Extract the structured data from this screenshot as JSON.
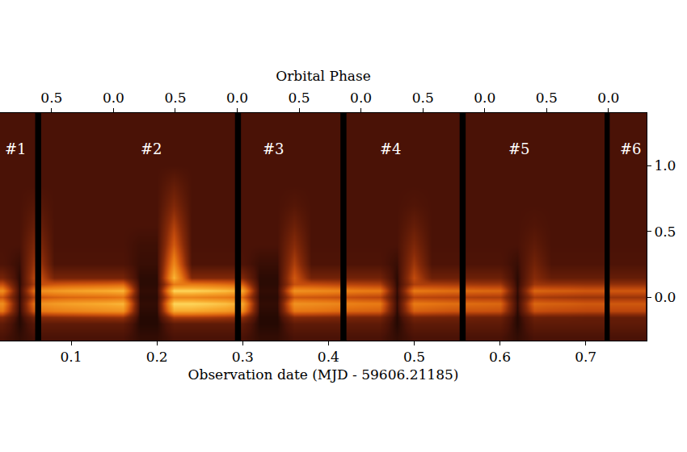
{
  "chart_data": {
    "type": "heatmap",
    "xlabel": "Observation date (MJD - 59606.21185)",
    "x2label": "Orbital Phase",
    "xlim": [
      0.017,
      0.771
    ],
    "xticks": [
      0.1,
      0.2,
      0.3,
      0.4,
      0.5,
      0.6,
      0.7
    ],
    "x2lim": [
      -0.917,
      4.308
    ],
    "x2ticks": [
      {
        "value": -0.5,
        "label": "0.5"
      },
      {
        "value": 0,
        "label": "0.0"
      },
      {
        "value": 0.5,
        "label": "0.5"
      },
      {
        "value": 1,
        "label": "0.0"
      },
      {
        "value": 1.5,
        "label": "0.5"
      },
      {
        "value": 2,
        "label": "0.0"
      },
      {
        "value": 2.5,
        "label": "0.5"
      },
      {
        "value": 3,
        "label": "0.0"
      },
      {
        "value": 3.5,
        "label": "0.5"
      },
      {
        "value": 4,
        "label": "0.0"
      }
    ],
    "ylim": [
      -0.33,
      1.4
    ],
    "yticks": [
      {
        "value": 0,
        "label": "0.0"
      },
      0.5,
      {
        "value": 1,
        "label": "1.0"
      }
    ],
    "grid": false,
    "zlim": [
      0,
      1
    ],
    "x": [
      0.02,
      0.04,
      0.06,
      0.08,
      0.1,
      0.12,
      0.14,
      0.16,
      0.18,
      0.2,
      0.22,
      0.24,
      0.26,
      0.28,
      0.3,
      0.32,
      0.34,
      0.36,
      0.38,
      0.4,
      0.42,
      0.44,
      0.46,
      0.48,
      0.5,
      0.52,
      0.54,
      0.56,
      0.58,
      0.6,
      0.62,
      0.64,
      0.66,
      0.68,
      0.7,
      0.72,
      0.74,
      0.76
    ],
    "y": [
      -0.3,
      -0.2,
      -0.15,
      -0.1,
      -0.05,
      0.0,
      0.05,
      0.1,
      0.15,
      0.25,
      0.4,
      0.55,
      0.7,
      0.85,
      1.0,
      1.15,
      1.3,
      1.4
    ],
    "cells": [
      [
        0.12,
        0.08,
        0.12,
        0.12,
        0.12,
        0.12,
        0.12,
        0.12,
        0.08,
        0.08,
        0.12,
        0.12,
        0.12,
        0.12,
        0.12,
        0.08,
        0.08,
        0.12,
        0.12,
        0.12,
        0.12,
        0.12,
        0.12,
        0.08,
        0.12,
        0.12,
        0.12,
        0.12,
        0.12,
        0.12,
        0.08,
        0.12,
        0.12,
        0.12,
        0.12,
        0.12,
        0.12,
        0.12
      ],
      [
        0.18,
        0.06,
        0.18,
        0.18,
        0.18,
        0.18,
        0.18,
        0.18,
        0.06,
        0.06,
        0.18,
        0.18,
        0.18,
        0.18,
        0.18,
        0.06,
        0.06,
        0.18,
        0.18,
        0.18,
        0.18,
        0.18,
        0.18,
        0.06,
        0.18,
        0.18,
        0.18,
        0.18,
        0.18,
        0.18,
        0.06,
        0.18,
        0.18,
        0.18,
        0.18,
        0.18,
        0.18,
        0.18
      ],
      [
        0.28,
        0.06,
        0.28,
        0.3,
        0.31,
        0.32,
        0.33,
        0.34,
        0.06,
        0.06,
        0.38,
        0.38,
        0.37,
        0.35,
        0.32,
        0.06,
        0.06,
        0.29,
        0.28,
        0.27,
        0.26,
        0.25,
        0.25,
        0.06,
        0.25,
        0.24,
        0.23,
        0.23,
        0.22,
        0.22,
        0.06,
        0.22,
        0.21,
        0.21,
        0.2,
        0.2,
        0.2,
        0.2
      ],
      [
        0.6,
        0.07,
        0.6,
        0.64,
        0.66,
        0.68,
        0.7,
        0.72,
        0.07,
        0.07,
        0.81,
        0.81,
        0.78,
        0.75,
        0.68,
        0.07,
        0.07,
        0.61,
        0.6,
        0.58,
        0.55,
        0.54,
        0.53,
        0.07,
        0.53,
        0.51,
        0.49,
        0.48,
        0.48,
        0.47,
        0.07,
        0.47,
        0.45,
        0.44,
        0.43,
        0.43,
        0.43,
        0.43
      ],
      [
        0.7,
        0.08,
        0.7,
        0.75,
        0.78,
        0.8,
        0.82,
        0.85,
        0.08,
        0.08,
        0.95,
        0.95,
        0.92,
        0.88,
        0.8,
        0.08,
        0.08,
        0.72,
        0.7,
        0.68,
        0.65,
        0.63,
        0.62,
        0.08,
        0.62,
        0.6,
        0.58,
        0.57,
        0.56,
        0.55,
        0.08,
        0.55,
        0.53,
        0.52,
        0.5,
        0.5,
        0.5,
        0.5
      ],
      [
        0.49,
        0.07,
        0.49,
        0.53,
        0.55,
        0.56,
        0.57,
        0.6,
        0.07,
        0.07,
        0.67,
        0.67,
        0.64,
        0.62,
        0.56,
        0.07,
        0.07,
        0.5,
        0.49,
        0.48,
        0.46,
        0.44,
        0.43,
        0.07,
        0.43,
        0.42,
        0.41,
        0.4,
        0.39,
        0.39,
        0.07,
        0.39,
        0.37,
        0.36,
        0.35,
        0.35,
        0.35,
        0.35
      ],
      [
        0.7,
        0.08,
        0.7,
        0.75,
        0.78,
        0.8,
        0.82,
        0.85,
        0.08,
        0.08,
        0.95,
        0.95,
        0.92,
        0.88,
        0.8,
        0.08,
        0.08,
        0.72,
        0.7,
        0.68,
        0.65,
        0.63,
        0.62,
        0.08,
        0.62,
        0.6,
        0.58,
        0.57,
        0.56,
        0.55,
        0.08,
        0.55,
        0.53,
        0.52,
        0.5,
        0.5,
        0.5,
        0.5
      ],
      [
        0.46,
        0.07,
        0.46,
        0.49,
        0.51,
        0.52,
        0.53,
        0.55,
        0.07,
        0.07,
        0.62,
        0.62,
        0.6,
        0.57,
        0.52,
        0.07,
        0.07,
        0.47,
        0.46,
        0.44,
        0.42,
        0.41,
        0.4,
        0.07,
        0.4,
        0.39,
        0.38,
        0.37,
        0.36,
        0.36,
        0.07,
        0.36,
        0.34,
        0.34,
        0.33,
        0.33,
        0.33,
        0.33
      ],
      [
        0.25,
        0.07,
        0.5,
        0.25,
        0.25,
        0.25,
        0.25,
        0.25,
        0.07,
        0.07,
        0.85,
        0.28,
        0.28,
        0.28,
        0.28,
        0.07,
        0.07,
        0.5,
        0.24,
        0.24,
        0.24,
        0.24,
        0.24,
        0.07,
        0.45,
        0.22,
        0.22,
        0.22,
        0.22,
        0.22,
        0.07,
        0.3,
        0.2,
        0.2,
        0.2,
        0.2,
        0.2,
        0.2
      ],
      [
        0.13,
        0.09,
        0.4,
        0.13,
        0.13,
        0.13,
        0.13,
        0.13,
        0.09,
        0.09,
        0.68,
        0.13,
        0.13,
        0.13,
        0.13,
        0.09,
        0.09,
        0.4,
        0.13,
        0.13,
        0.13,
        0.13,
        0.13,
        0.09,
        0.36,
        0.13,
        0.13,
        0.13,
        0.13,
        0.13,
        0.09,
        0.24,
        0.13,
        0.13,
        0.13,
        0.13,
        0.13,
        0.13
      ],
      [
        0.12,
        0.12,
        0.3,
        0.12,
        0.12,
        0.12,
        0.12,
        0.12,
        0.1,
        0.1,
        0.51,
        0.12,
        0.12,
        0.12,
        0.12,
        0.12,
        0.12,
        0.3,
        0.12,
        0.12,
        0.12,
        0.12,
        0.12,
        0.12,
        0.27,
        0.12,
        0.12,
        0.12,
        0.12,
        0.12,
        0.12,
        0.18,
        0.12,
        0.12,
        0.12,
        0.12,
        0.12,
        0.12
      ],
      [
        0.12,
        0.12,
        0.22,
        0.12,
        0.12,
        0.12,
        0.12,
        0.12,
        0.12,
        0.12,
        0.4,
        0.12,
        0.12,
        0.12,
        0.12,
        0.12,
        0.12,
        0.22,
        0.12,
        0.12,
        0.12,
        0.12,
        0.12,
        0.12,
        0.2,
        0.12,
        0.12,
        0.12,
        0.12,
        0.12,
        0.12,
        0.14,
        0.12,
        0.12,
        0.12,
        0.12,
        0.12,
        0.12
      ],
      [
        0.12,
        0.12,
        0.16,
        0.12,
        0.12,
        0.12,
        0.12,
        0.12,
        0.12,
        0.12,
        0.28,
        0.12,
        0.12,
        0.12,
        0.12,
        0.12,
        0.12,
        0.15,
        0.12,
        0.12,
        0.12,
        0.12,
        0.12,
        0.12,
        0.14,
        0.12,
        0.12,
        0.12,
        0.12,
        0.12,
        0.12,
        0.12,
        0.12,
        0.12,
        0.12,
        0.12,
        0.12,
        0.12
      ],
      [
        0.12,
        0.12,
        0.12,
        0.12,
        0.12,
        0.12,
        0.12,
        0.12,
        0.12,
        0.12,
        0.2,
        0.12,
        0.12,
        0.12,
        0.12,
        0.12,
        0.12,
        0.12,
        0.12,
        0.12,
        0.12,
        0.12,
        0.12,
        0.12,
        0.12,
        0.12,
        0.12,
        0.12,
        0.12,
        0.12,
        0.12,
        0.12,
        0.12,
        0.12,
        0.12,
        0.12,
        0.12,
        0.12
      ],
      [
        0.12,
        0.12,
        0.12,
        0.12,
        0.12,
        0.12,
        0.12,
        0.12,
        0.12,
        0.12,
        0.12,
        0.12,
        0.12,
        0.12,
        0.12,
        0.12,
        0.12,
        0.12,
        0.12,
        0.12,
        0.12,
        0.12,
        0.12,
        0.12,
        0.12,
        0.12,
        0.12,
        0.12,
        0.12,
        0.12,
        0.12,
        0.12,
        0.12,
        0.12,
        0.12,
        0.12,
        0.12,
        0.12
      ],
      [
        0.12,
        0.12,
        0.12,
        0.12,
        0.12,
        0.12,
        0.12,
        0.12,
        0.12,
        0.12,
        0.12,
        0.12,
        0.12,
        0.12,
        0.12,
        0.12,
        0.12,
        0.12,
        0.12,
        0.12,
        0.12,
        0.12,
        0.12,
        0.12,
        0.12,
        0.12,
        0.12,
        0.12,
        0.12,
        0.12,
        0.12,
        0.12,
        0.12,
        0.12,
        0.12,
        0.12,
        0.12,
        0.12
      ],
      [
        0.12,
        0.12,
        0.12,
        0.12,
        0.12,
        0.12,
        0.12,
        0.12,
        0.12,
        0.12,
        0.12,
        0.12,
        0.12,
        0.12,
        0.12,
        0.12,
        0.12,
        0.12,
        0.12,
        0.12,
        0.12,
        0.12,
        0.12,
        0.12,
        0.12,
        0.12,
        0.12,
        0.12,
        0.12,
        0.12,
        0.12,
        0.12,
        0.12,
        0.12,
        0.12,
        0.12,
        0.12,
        0.12
      ],
      [
        0.12,
        0.12,
        0.12,
        0.12,
        0.12,
        0.12,
        0.12,
        0.12,
        0.12,
        0.12,
        0.12,
        0.12,
        0.12,
        0.12,
        0.12,
        0.12,
        0.12,
        0.12,
        0.12,
        0.12,
        0.12,
        0.12,
        0.12,
        0.12,
        0.12,
        0.12,
        0.12,
        0.12,
        0.12,
        0.12,
        0.12,
        0.12,
        0.12,
        0.12,
        0.12,
        0.12,
        0.12,
        0.12
      ]
    ],
    "gaps": [
      [
        0.058,
        0.065
      ],
      [
        0.291,
        0.298
      ],
      [
        0.414,
        0.421
      ],
      [
        0.553,
        0.56
      ],
      [
        0.722,
        0.728
      ]
    ],
    "annotations": [
      {
        "text": "#1",
        "x": 0.035,
        "y": 1.13
      },
      {
        "text": "#2",
        "x": 0.194,
        "y": 1.13
      },
      {
        "text": "#3",
        "x": 0.336,
        "y": 1.13
      },
      {
        "text": "#4",
        "x": 0.473,
        "y": 1.13
      },
      {
        "text": "#5",
        "x": 0.623,
        "y": 1.13
      },
      {
        "text": "#6",
        "x": 0.753,
        "y": 1.13
      }
    ]
  }
}
